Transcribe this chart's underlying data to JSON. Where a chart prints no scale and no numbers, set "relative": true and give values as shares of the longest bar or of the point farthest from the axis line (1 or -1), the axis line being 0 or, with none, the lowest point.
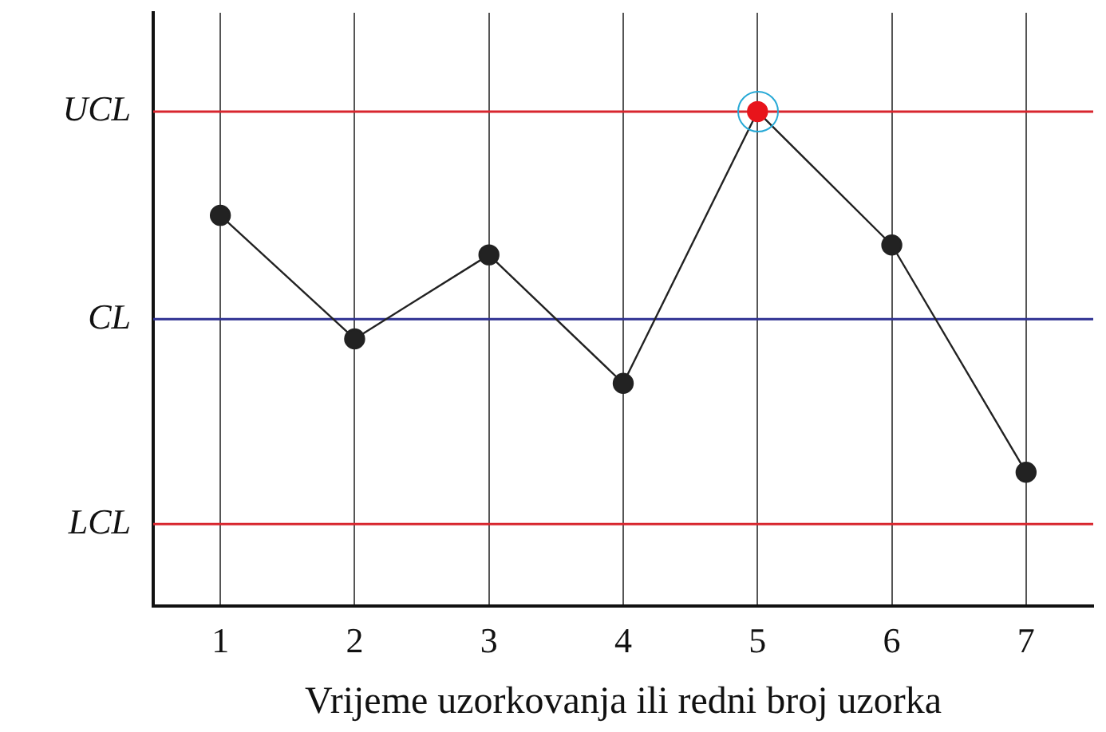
{
  "chart_data": {
    "type": "line",
    "relative": true,
    "xlabel": "Vrijeme uzorkovanja ili redni broj uzorka",
    "categories": [
      "1",
      "2",
      "3",
      "4",
      "5",
      "6",
      "7"
    ],
    "series": [
      {
        "color": "#222222",
        "colors": [
          "#222222",
          "#222222",
          "#222222",
          "#222222",
          "#e8141b",
          "#222222",
          "#222222"
        ],
        "values": [
          0.79,
          0.54,
          0.71,
          0.45,
          1,
          0.73,
          0.27
        ]
      }
    ],
    "ref_lines": [
      {
        "axis": "y",
        "value": 1,
        "label": "UCL",
        "color": "#d8262e"
      },
      {
        "axis": "y",
        "value": 0.58,
        "label": "CL",
        "color": "#2e3192"
      },
      {
        "axis": "y",
        "value": 0.165,
        "label": "LCL",
        "color": "#d8262e"
      }
    ],
    "grid": "x",
    "marker": "circle",
    "line_style": "solid",
    "legend": false
  }
}
